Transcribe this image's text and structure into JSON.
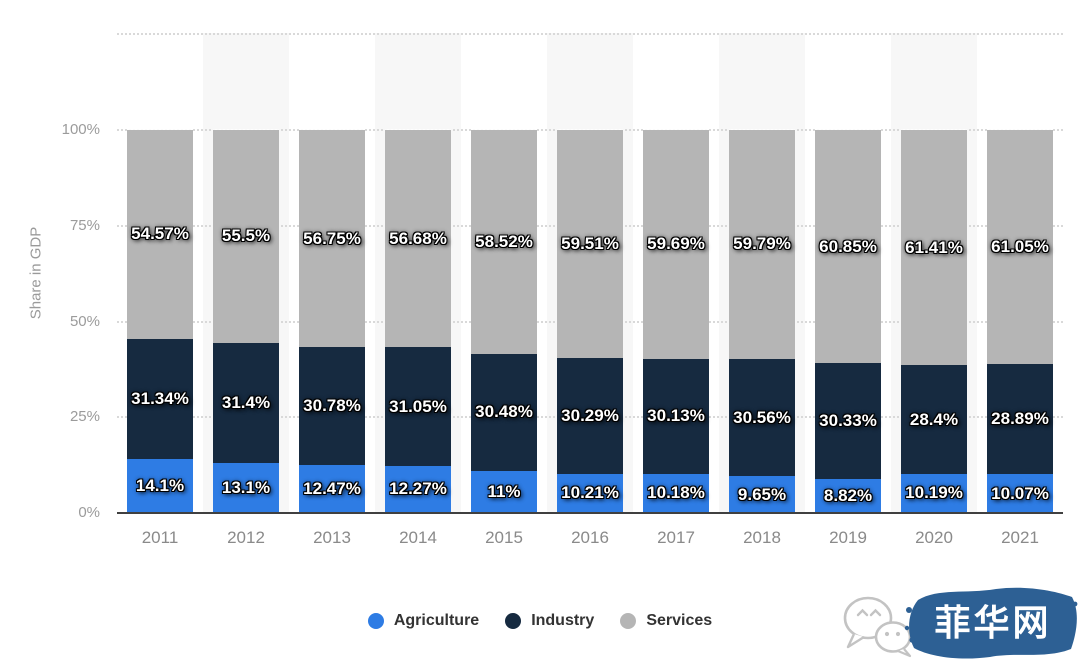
{
  "chart_data": {
    "type": "bar",
    "stacked": true,
    "categories": [
      "2011",
      "2012",
      "2013",
      "2014",
      "2015",
      "2016",
      "2017",
      "2018",
      "2019",
      "2020",
      "2021"
    ],
    "series": [
      {
        "name": "Agriculture",
        "color": "#2e7ce4",
        "values": [
          14.1,
          13.1,
          12.47,
          12.27,
          11,
          10.21,
          10.18,
          9.65,
          8.82,
          10.19,
          10.07
        ],
        "labels": [
          "14.1%",
          "13.1%",
          "12.47%",
          "12.27%",
          "11%",
          "10.21%",
          "10.18%",
          "9.65%",
          "8.82%",
          "10.19%",
          "10.07%"
        ]
      },
      {
        "name": "Industry",
        "color": "#162a40",
        "values": [
          31.34,
          31.4,
          30.78,
          31.05,
          30.48,
          30.29,
          30.13,
          30.56,
          30.33,
          28.4,
          28.89
        ],
        "labels": [
          "31.34%",
          "31.4%",
          "30.78%",
          "31.05%",
          "30.48%",
          "30.29%",
          "30.13%",
          "30.56%",
          "30.33%",
          "28.4%",
          "28.89%"
        ]
      },
      {
        "name": "Services",
        "color": "#b5b5b5",
        "values": [
          54.57,
          55.5,
          56.75,
          56.68,
          58.52,
          59.51,
          59.69,
          59.79,
          60.85,
          61.41,
          61.05
        ],
        "labels": [
          "54.57%",
          "55.5%",
          "56.75%",
          "56.68%",
          "58.52%",
          "59.51%",
          "59.69%",
          "59.79%",
          "60.85%",
          "61.41%",
          "61.05%"
        ]
      }
    ],
    "title": "",
    "xlabel": "",
    "ylabel": "Share in GDP",
    "ylim": [
      0,
      125
    ],
    "yticks": [
      {
        "label": "0%",
        "value": 0
      },
      {
        "label": "25%",
        "value": 25
      },
      {
        "label": "50%",
        "value": 50
      },
      {
        "label": "75%",
        "value": 75
      },
      {
        "label": "100%",
        "value": 100
      }
    ],
    "gridlines": [
      25,
      50,
      75,
      100,
      125
    ],
    "grid": "dotted",
    "legend_position": "bottom-center",
    "banded_columns": [
      1,
      3,
      5,
      7,
      9
    ]
  },
  "watermark": {
    "brand_text": "菲华网",
    "brand_color": "#2d6094",
    "icon": "wechat-icon"
  }
}
